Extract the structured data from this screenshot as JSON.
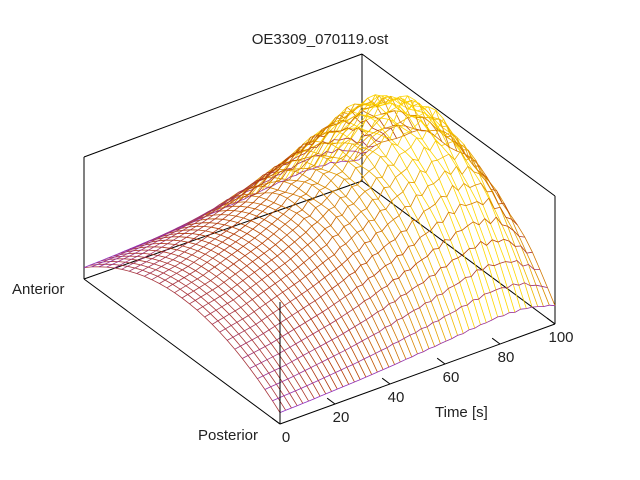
{
  "chart_data": {
    "type": "surface",
    "title": "OE3309_070119.ost",
    "xlabel": "Time [s]",
    "y_labels": {
      "near": "Posterior",
      "far": "Anterior"
    },
    "x_ticks": [
      0,
      20,
      40,
      60,
      80,
      100
    ],
    "x_range": [
      0,
      100
    ],
    "grid": false,
    "style": "wireframe mesh colored by height: purple (low) to red-brown to yellow (high)",
    "surface_profile": {
      "x": [
        0,
        10,
        20,
        30,
        40,
        50,
        60,
        70,
        80,
        90,
        100
      ],
      "relative_peak_height": [
        0.3,
        0.34,
        0.4,
        0.46,
        0.54,
        0.64,
        0.74,
        0.86,
        0.96,
        0.9,
        0.6
      ],
      "peak_position_anterior_fraction": 0.5
    }
  },
  "colors": {
    "low": "#8a2be2",
    "mid": "#b33a00",
    "high": "#ffd700",
    "axes": "#000000"
  }
}
